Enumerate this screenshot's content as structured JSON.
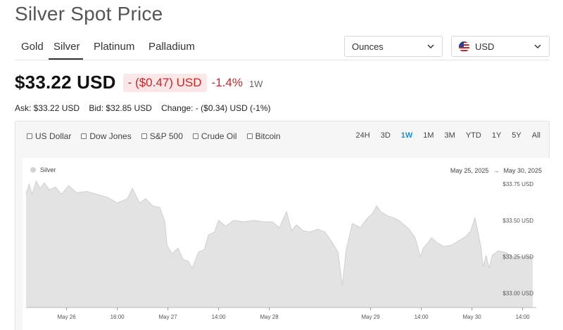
{
  "page": {
    "title": "Silver Spot Price"
  },
  "metal_tabs": [
    {
      "label": "Gold",
      "active": false
    },
    {
      "label": "Silver",
      "active": true
    },
    {
      "label": "Platinum",
      "active": false
    },
    {
      "label": "Palladium",
      "active": false
    }
  ],
  "unit_select": {
    "value": "Ounces",
    "icon": "chevron-down-icon"
  },
  "currency_select": {
    "value": "USD",
    "icon": "us-flag-icon"
  },
  "price": {
    "main": "$33.22 USD",
    "change_amount": "- ($0.47) USD",
    "change_percent": "-1.4%",
    "period": "1W"
  },
  "quote": {
    "ask": "Ask: $33.22 USD",
    "bid": "Bid: $32.85 USD",
    "change": "Change: - ($0.34) USD (-1%)"
  },
  "compare_options": [
    {
      "label": "US Dollar",
      "checked": false
    },
    {
      "label": "Dow Jones",
      "checked": false
    },
    {
      "label": "S&P 500",
      "checked": false
    },
    {
      "label": "Crude Oil",
      "checked": false
    },
    {
      "label": "Bitcoin",
      "checked": false
    }
  ],
  "ranges": [
    {
      "label": "24H",
      "active": false
    },
    {
      "label": "3D",
      "active": false
    },
    {
      "label": "1W",
      "active": true
    },
    {
      "label": "1M",
      "active": false
    },
    {
      "label": "3M",
      "active": false
    },
    {
      "label": "YTD",
      "active": false
    },
    {
      "label": "1Y",
      "active": false
    },
    {
      "label": "5Y",
      "active": false
    },
    {
      "label": "All",
      "active": false
    }
  ],
  "legend": {
    "series": "Silver"
  },
  "date_range": {
    "from": "May 25, 2025",
    "to": "May 30, 2025"
  },
  "colors": {
    "negative": "#c62828",
    "active_range": "#1f8ed6",
    "area_fill": "#e3e3e3",
    "area_line": "#cfcfcf"
  },
  "chart_data": {
    "type": "area",
    "series": [
      {
        "name": "Silver"
      }
    ],
    "y_ticks": [
      {
        "value": 33.75,
        "label": "$33.75 USD"
      },
      {
        "value": 33.5,
        "label": "$33.50 USD"
      },
      {
        "value": 33.25,
        "label": "$33.25 USD"
      },
      {
        "value": 33.0,
        "label": "$33.00 USD"
      }
    ],
    "x_ticks": [
      {
        "t": 0.4,
        "label": "May 26"
      },
      {
        "t": 0.9,
        "label": "16:00"
      },
      {
        "t": 1.4,
        "label": "May 27"
      },
      {
        "t": 1.9,
        "label": "14:00"
      },
      {
        "t": 2.4,
        "label": "May 28"
      },
      {
        "t": 3.4,
        "label": "May 29"
      },
      {
        "t": 3.9,
        "label": "14:00"
      },
      {
        "t": 4.4,
        "label": "May 30"
      },
      {
        "t": 4.9,
        "label": "14:00"
      }
    ],
    "y_range": [
      32.9,
      33.93
    ],
    "x_range": [
      0,
      5
    ],
    "points": [
      [
        0.0,
        33.68
      ],
      [
        0.03,
        33.75
      ],
      [
        0.06,
        33.68
      ],
      [
        0.1,
        33.77
      ],
      [
        0.14,
        33.72
      ],
      [
        0.18,
        33.76
      ],
      [
        0.23,
        33.71
      ],
      [
        0.29,
        33.73
      ],
      [
        0.35,
        33.68
      ],
      [
        0.42,
        33.74
      ],
      [
        0.5,
        33.69
      ],
      [
        0.6,
        33.7
      ],
      [
        0.7,
        33.68
      ],
      [
        0.8,
        33.66
      ],
      [
        0.9,
        33.62
      ],
      [
        1.0,
        33.65
      ],
      [
        1.05,
        33.72
      ],
      [
        1.12,
        33.62
      ],
      [
        1.18,
        33.65
      ],
      [
        1.25,
        33.6
      ],
      [
        1.32,
        33.59
      ],
      [
        1.37,
        33.49
      ],
      [
        1.39,
        33.33
      ],
      [
        1.44,
        33.27
      ],
      [
        1.5,
        33.31
      ],
      [
        1.55,
        33.23
      ],
      [
        1.6,
        33.22
      ],
      [
        1.64,
        33.17
      ],
      [
        1.7,
        33.28
      ],
      [
        1.76,
        33.3
      ],
      [
        1.8,
        33.4
      ],
      [
        1.86,
        33.42
      ],
      [
        1.9,
        33.5
      ],
      [
        1.97,
        33.46
      ],
      [
        2.05,
        33.5
      ],
      [
        2.15,
        33.49
      ],
      [
        2.25,
        33.5
      ],
      [
        2.35,
        33.49
      ],
      [
        2.43,
        33.49
      ],
      [
        2.5,
        33.45
      ],
      [
        2.57,
        33.56
      ],
      [
        2.62,
        33.43
      ],
      [
        2.67,
        33.47
      ],
      [
        2.73,
        33.43
      ],
      [
        2.8,
        33.42
      ],
      [
        2.88,
        33.44
      ],
      [
        2.95,
        33.42
      ],
      [
        3.02,
        33.35
      ],
      [
        3.08,
        33.28
      ],
      [
        3.12,
        33.05
      ],
      [
        3.16,
        33.3
      ],
      [
        3.22,
        33.48
      ],
      [
        3.3,
        33.45
      ],
      [
        3.36,
        33.51
      ],
      [
        3.42,
        33.55
      ],
      [
        3.46,
        33.6
      ],
      [
        3.5,
        33.56
      ],
      [
        3.57,
        33.53
      ],
      [
        3.62,
        33.52
      ],
      [
        3.68,
        33.5
      ],
      [
        3.73,
        33.47
      ],
      [
        3.78,
        33.44
      ],
      [
        3.84,
        33.38
      ],
      [
        3.89,
        33.25
      ],
      [
        3.92,
        33.31
      ],
      [
        3.96,
        33.34
      ],
      [
        4.0,
        33.38
      ],
      [
        4.05,
        33.35
      ],
      [
        4.12,
        33.32
      ],
      [
        4.2,
        33.33
      ],
      [
        4.27,
        33.36
      ],
      [
        4.34,
        33.39
      ],
      [
        4.39,
        33.43
      ],
      [
        4.43,
        33.52
      ],
      [
        4.46,
        33.42
      ],
      [
        4.49,
        33.31
      ],
      [
        4.51,
        33.18
      ],
      [
        4.54,
        33.26
      ],
      [
        4.57,
        33.17
      ],
      [
        4.6,
        33.26
      ],
      [
        4.66,
        33.29
      ],
      [
        4.73,
        33.28
      ],
      [
        4.8,
        33.25
      ],
      [
        4.9,
        33.25
      ],
      [
        5.0,
        33.25
      ]
    ]
  }
}
